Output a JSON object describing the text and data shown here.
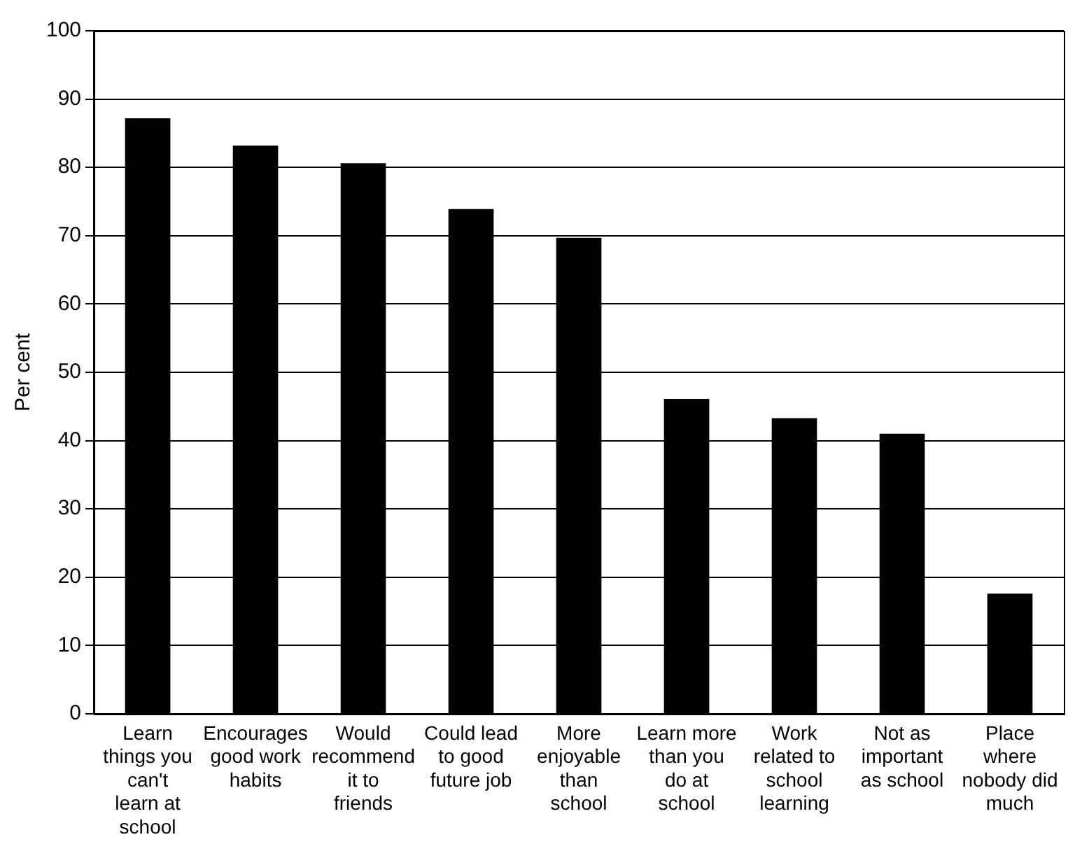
{
  "chart_data": {
    "type": "bar",
    "ylabel": "Per cent",
    "categories": [
      "Learn things you can't learn at school",
      "Encourages good work habits",
      "Would recommend it to friends",
      "Could lead to good future job",
      "More enjoyable than school",
      "Learn more than you do at school",
      "Work related to school learning",
      "Not as important as school",
      "Place where nobody did much"
    ],
    "values": [
      87.2,
      83.2,
      80.6,
      73.9,
      69.7,
      46.1,
      43.3,
      41,
      17.6
    ],
    "color": "#000000",
    "ylim": [
      0,
      100
    ],
    "yticks": [
      0,
      10,
      20,
      30,
      40,
      50,
      60,
      70,
      80,
      90,
      100
    ],
    "grid": "y",
    "legend": false
  }
}
